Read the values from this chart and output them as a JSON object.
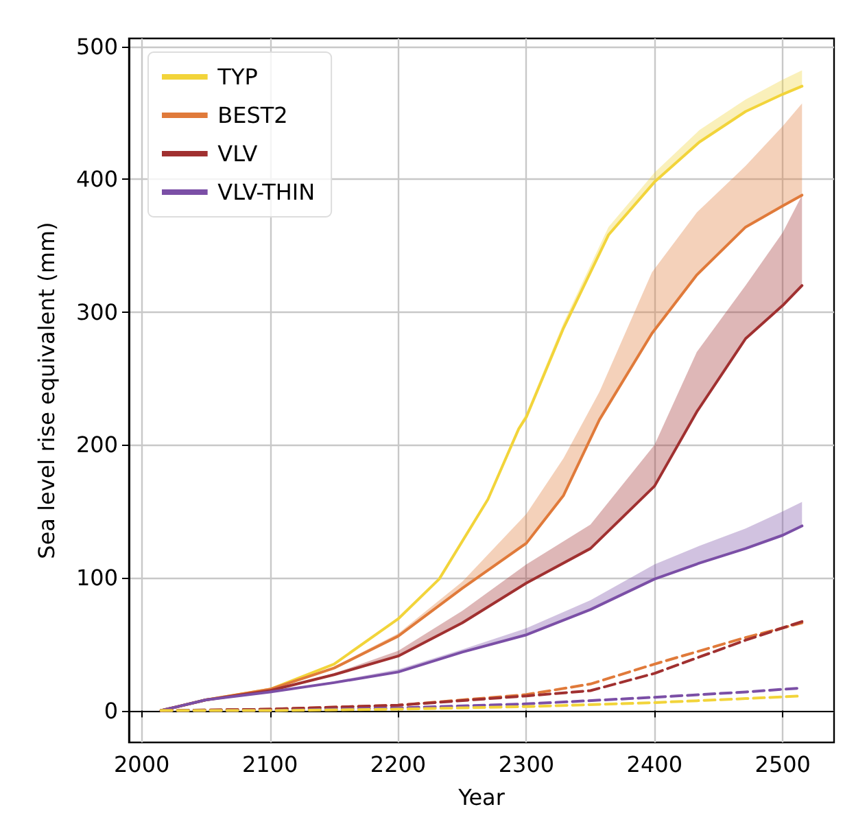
{
  "chart_data": {
    "type": "line",
    "xlabel": "Year",
    "ylabel": "Sea level rise equivalent (mm)",
    "xlim": [
      1990,
      2540
    ],
    "xticks": [
      2000,
      2100,
      2200,
      2300,
      2400,
      2500
    ],
    "ylim": [
      -24,
      506
    ],
    "yticks": [
      0,
      100,
      200,
      300,
      400,
      500
    ],
    "grid": true,
    "legend": "top left",
    "marker": "none",
    "line_style": "solid",
    "series": [
      {
        "name": "TYP",
        "color": "#f2d43a",
        "x": [
          2015,
          2050,
          2100,
          2150,
          2200,
          2232,
          2270,
          2294,
          2300,
          2329,
          2364,
          2400,
          2435,
          2471,
          2500,
          2515
        ],
        "values": [
          0,
          8,
          16,
          35,
          69,
          99,
          159,
          212,
          221,
          288,
          358,
          398,
          428,
          451,
          464,
          470
        ],
        "lower": [
          0,
          8,
          16,
          35,
          69,
          99,
          159,
          212,
          221,
          288,
          358,
          398,
          428,
          451,
          464,
          470
        ],
        "upper": [
          0,
          8,
          16,
          35,
          69,
          99,
          160,
          214,
          224,
          292,
          364,
          405,
          437,
          460,
          475,
          482
        ]
      },
      {
        "name": "BEST2",
        "color": "#e07a3a",
        "x": [
          2015,
          2050,
          2100,
          2150,
          2200,
          2250,
          2300,
          2329,
          2357,
          2398,
          2433,
          2471,
          2500,
          2515
        ],
        "values": [
          0,
          8,
          16,
          32,
          56,
          92,
          126,
          162,
          219,
          284,
          328,
          364,
          380,
          388
        ],
        "lower": [
          0,
          8,
          16,
          32,
          56,
          92,
          126,
          162,
          219,
          284,
          328,
          364,
          380,
          388
        ],
        "upper": [
          0,
          8,
          16,
          33,
          58,
          97,
          148,
          190,
          240,
          330,
          375,
          410,
          440,
          457
        ]
      },
      {
        "name": "VLV",
        "color": "#a03030",
        "x": [
          2015,
          2050,
          2100,
          2150,
          2200,
          2250,
          2300,
          2350,
          2400,
          2433,
          2471,
          2500,
          2515
        ],
        "values": [
          0,
          8,
          15,
          27,
          41,
          66,
          96,
          122,
          169,
          225,
          280,
          305,
          320
        ],
        "lower": [
          0,
          8,
          15,
          27,
          41,
          66,
          96,
          122,
          169,
          225,
          280,
          305,
          320
        ],
        "upper": [
          0,
          8,
          15,
          28,
          45,
          75,
          110,
          140,
          200,
          270,
          320,
          360,
          388
        ]
      },
      {
        "name": "VLV-THIN",
        "color": "#7b4fa6",
        "x": [
          2015,
          2050,
          2100,
          2150,
          2200,
          2250,
          2300,
          2350,
          2400,
          2435,
          2471,
          2500,
          2515
        ],
        "values": [
          0,
          8,
          14,
          21,
          29,
          44,
          57,
          76,
          99,
          111,
          122,
          132,
          139
        ],
        "lower": [
          0,
          8,
          14,
          21,
          29,
          44,
          57,
          76,
          99,
          111,
          122,
          132,
          139
        ],
        "upper": [
          0,
          8,
          14,
          22,
          31,
          46,
          62,
          83,
          110,
          124,
          137,
          150,
          157
        ]
      },
      {
        "color": "#e07a3a",
        "line_style": "dashed",
        "x": [
          2015,
          2100,
          2200,
          2300,
          2350,
          2400,
          2471,
          2515
        ],
        "values": [
          0,
          1,
          4,
          12,
          20,
          35,
          55,
          66
        ]
      },
      {
        "color": "#a03030",
        "line_style": "dashed",
        "x": [
          2015,
          2100,
          2200,
          2300,
          2350,
          2400,
          2471,
          2515
        ],
        "values": [
          0,
          1,
          4,
          11,
          15,
          28,
          53,
          67
        ]
      },
      {
        "color": "#7b4fa6",
        "line_style": "dashed",
        "x": [
          2015,
          2100,
          2200,
          2300,
          2400,
          2471,
          2515
        ],
        "values": [
          0,
          0,
          2,
          5,
          10,
          14,
          17
        ]
      },
      {
        "color": "#f2d43a",
        "line_style": "dashed",
        "x": [
          2015,
          2100,
          2200,
          2300,
          2400,
          2471,
          2515
        ],
        "values": [
          0,
          0,
          1,
          3,
          6,
          9,
          11
        ]
      }
    ]
  }
}
